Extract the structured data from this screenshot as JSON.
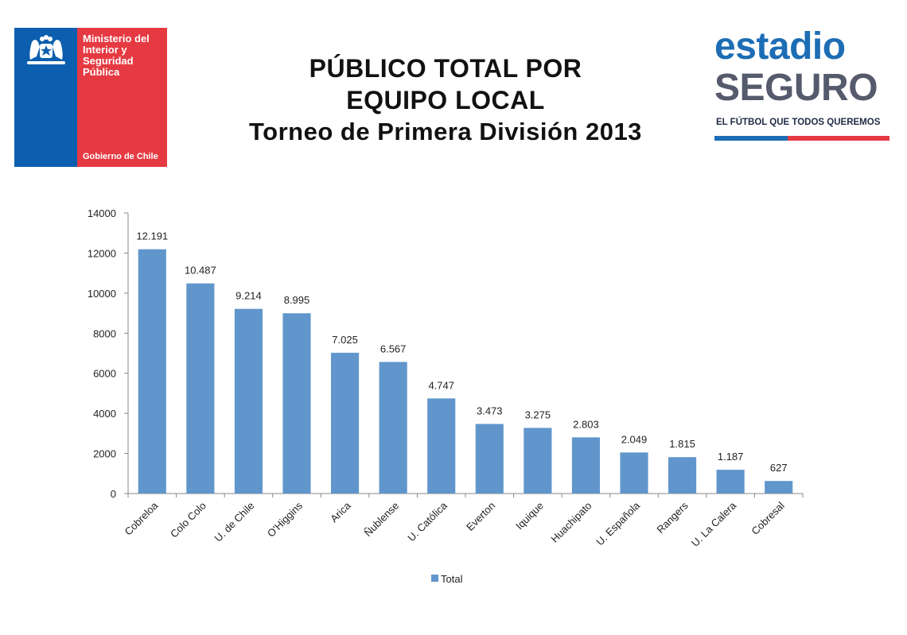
{
  "header": {
    "gov_logo": {
      "ministry": "Ministerio del Interior y Seguridad Pública",
      "government": "Gobierno de Chile",
      "colors": {
        "blue": "#0b5fae",
        "red": "#e63a42"
      }
    },
    "title_line1": "PÚBLICO TOTAL POR",
    "title_line2": "EQUIPO LOCAL",
    "title_line3": "Torneo de Primera División 2013",
    "brand_logo": {
      "word1": "estadio",
      "word2": "SEGURO",
      "tagline": "EL FÚTBOL QUE TODOS QUEREMOS",
      "colors": {
        "blue": "#1d6db5",
        "gray": "#555a6c",
        "red": "#e63a42"
      }
    }
  },
  "chart_data": {
    "type": "bar",
    "categories": [
      "Cobreloa",
      "Colo Colo",
      "U. de Chile",
      "O'Higgins",
      "Arica",
      "Ñublense",
      "U. Católica",
      "Everton",
      "Iquique",
      "Huachipato",
      "U. Española",
      "Rangers",
      "U. La Calera",
      "Cobresal"
    ],
    "series": [
      {
        "name": "Total",
        "values": [
          12191,
          10487,
          9214,
          8995,
          7025,
          6567,
          4747,
          3473,
          3275,
          2803,
          2049,
          1815,
          1187,
          627
        ],
        "labels": [
          "12.191",
          "10.487",
          "9.214",
          "8.995",
          "7.025",
          "6.567",
          "4.747",
          "3.473",
          "3.275",
          "2.803",
          "2.049",
          "1.815",
          "1.187",
          "627"
        ]
      }
    ],
    "yticks": [
      "0",
      "2000",
      "4000",
      "6000",
      "8000",
      "10000",
      "12000",
      "14000"
    ],
    "ylim": [
      0,
      14000
    ],
    "legend": "bottom-center",
    "grid": false,
    "bar_color": "#6196cc"
  }
}
